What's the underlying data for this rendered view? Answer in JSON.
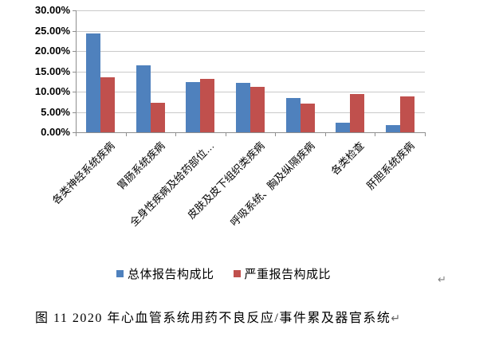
{
  "chart_data": {
    "type": "bar",
    "title": "",
    "categories": [
      "各类神经系统疾病",
      "胃肠系统疾病",
      "全身性疾病及给药部位…",
      "皮肤及皮下组织类疾病",
      "呼吸系统、胸及纵隔疾病",
      "各类检查",
      "肝胆系统疾病"
    ],
    "series": [
      {
        "name": "总体报告构成比",
        "color": "#4F81BD",
        "values": [
          24.4,
          16.4,
          12.3,
          12.1,
          8.4,
          2.4,
          1.7
        ]
      },
      {
        "name": "严重报告构成比",
        "color": "#C0504D",
        "values": [
          13.5,
          7.2,
          13.1,
          11.2,
          7.1,
          9.5,
          8.9
        ]
      }
    ],
    "xlabel": "",
    "ylabel": "",
    "ylim": [
      0,
      30
    ],
    "ytick_step": 5,
    "ytick_labels": [
      "30.00%",
      "25.00%",
      "20.00%",
      "15.00%",
      "10.00%",
      "5.00%",
      "0.00%"
    ],
    "values_unit": "%",
    "grid": true,
    "legend_position": "bottom",
    "gridline_color": "#C9C9C9",
    "axis_color": "#8E8E8E"
  },
  "marks": {
    "after_chart": "↵"
  },
  "caption": {
    "text": "图 11  2020 年心血管系统用药不良反应/事件累及器官系统",
    "return_mark": "↵"
  }
}
